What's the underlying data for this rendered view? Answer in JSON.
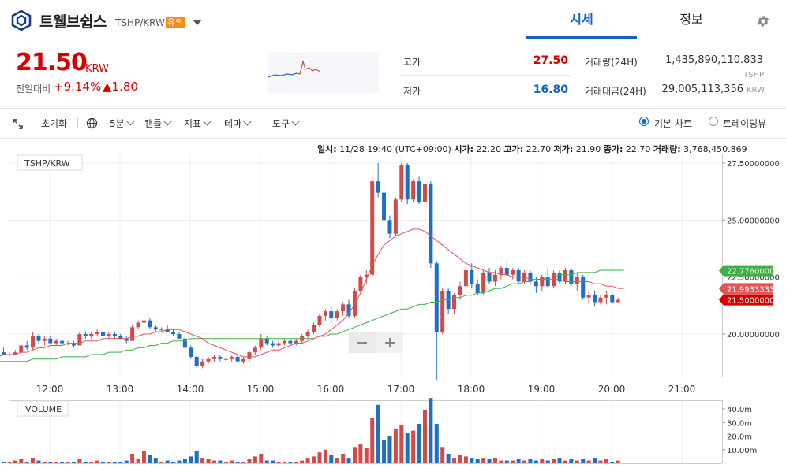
{
  "header": {
    "coin_name": "트웰브쉽스",
    "pair": "TSHP/KRW",
    "caution_badge": "유의",
    "tabs": [
      "시세",
      "정보"
    ]
  },
  "price": {
    "current": "21.50",
    "unit": "KRW",
    "change_label": "전일대비",
    "change_rate": "+9.14%",
    "change_price": "▲1.80"
  },
  "stats": {
    "high_label": "고가",
    "high": "27.50",
    "low_label": "저가",
    "low": "16.80",
    "volume_label": "거래량(24H)",
    "volume": "1,435,890,110.833",
    "volume_unit": "TSHP",
    "amount_label": "거래대금(24H)",
    "amount": "29,005,113,356",
    "amount_unit": "KRW"
  },
  "toolbar": {
    "reset": "초기화",
    "interval": "5분",
    "candle": "캔들",
    "indicator": "지표",
    "theme": "테마",
    "tools": "도구",
    "basic_chart": "기본 차트",
    "tradingview": "트레이딩뷰"
  },
  "info_line": {
    "time_label": "일시:",
    "time": "11/28 19:40 (UTC+09:00)",
    "open_label": "시가:",
    "open": "22.20",
    "high_label": "고가:",
    "high": "22.70",
    "low_label": "저가:",
    "low": "21.90",
    "close_label": "종가:",
    "close": "22.70",
    "volume_label": "거래량:",
    "volume": "3,768,450.869"
  },
  "chart_data": {
    "type": "candlestick",
    "symbol_label": "TSHP/KRW",
    "volume_label": "VOLUME",
    "x_ticks": [
      "12:00",
      "13:00",
      "14:00",
      "15:00",
      "16:00",
      "17:00",
      "18:00",
      "19:00",
      "20:00",
      "21:00"
    ],
    "y_ticks": [
      "27.50000000",
      "25.00000000",
      "22.50000000",
      "20.00000000"
    ],
    "y_range": [
      17.8,
      27.8
    ],
    "volume_ticks": [
      "40.0m",
      "30.0m",
      "20.0m",
      "10.00m"
    ],
    "volume_range": [
      0,
      50
    ],
    "price_labels": [
      {
        "value": "22.77600000",
        "color": "#3cb043"
      },
      {
        "value": "21.99333333",
        "color": "#e05555"
      },
      {
        "value": "21.50000000",
        "color": "#d60000"
      }
    ],
    "candle_interval_minutes": 5,
    "first_candle_time": "11:30",
    "candles": [
      [
        19.1,
        19.2,
        18.9,
        18.9
      ],
      [
        18.9,
        19.1,
        18.8,
        19.0
      ],
      [
        19.0,
        19.3,
        18.9,
        19.2
      ],
      [
        19.2,
        19.4,
        19.1,
        19.1
      ],
      [
        19.1,
        19.2,
        19.0,
        19.1
      ],
      [
        19.1,
        19.3,
        19.1,
        19.2
      ],
      [
        19.2,
        19.6,
        19.1,
        19.5
      ],
      [
        19.5,
        19.7,
        19.3,
        19.4
      ],
      [
        19.4,
        20.1,
        19.3,
        19.9
      ],
      [
        19.9,
        20.0,
        19.6,
        19.7
      ],
      [
        19.7,
        19.9,
        19.5,
        19.8
      ],
      [
        19.8,
        19.9,
        19.6,
        19.6
      ],
      [
        19.6,
        19.8,
        19.5,
        19.7
      ],
      [
        19.7,
        19.8,
        19.5,
        19.6
      ],
      [
        19.6,
        19.7,
        19.5,
        19.6
      ],
      [
        19.6,
        19.7,
        19.4,
        19.5
      ],
      [
        19.5,
        20.1,
        19.5,
        20.0
      ],
      [
        20.0,
        20.1,
        19.8,
        19.9
      ],
      [
        19.9,
        20.1,
        19.8,
        20.0
      ],
      [
        20.0,
        20.2,
        19.9,
        20.1
      ],
      [
        20.1,
        20.2,
        19.9,
        19.9
      ],
      [
        19.9,
        20.1,
        19.8,
        20.0
      ],
      [
        20.0,
        20.1,
        19.8,
        19.9
      ],
      [
        19.9,
        20.0,
        19.8,
        19.8
      ],
      [
        19.8,
        19.9,
        19.6,
        19.7
      ],
      [
        19.7,
        20.4,
        19.7,
        20.3
      ],
      [
        20.3,
        20.6,
        20.2,
        20.5
      ],
      [
        20.5,
        20.8,
        20.3,
        20.6
      ],
      [
        20.6,
        20.7,
        20.2,
        20.3
      ],
      [
        20.3,
        20.4,
        20.1,
        20.2
      ],
      [
        20.2,
        20.3,
        20.1,
        20.2
      ],
      [
        20.2,
        20.4,
        20.1,
        20.1
      ],
      [
        20.1,
        20.2,
        19.9,
        20.0
      ],
      [
        20.0,
        20.1,
        19.8,
        19.8
      ],
      [
        19.8,
        19.9,
        19.3,
        19.4
      ],
      [
        19.4,
        19.5,
        18.9,
        19.0
      ],
      [
        19.0,
        19.1,
        18.5,
        18.6
      ],
      [
        18.6,
        18.9,
        18.5,
        18.8
      ],
      [
        18.8,
        19.0,
        18.7,
        18.9
      ],
      [
        18.9,
        19.1,
        18.8,
        19.0
      ],
      [
        19.0,
        19.1,
        18.8,
        18.9
      ],
      [
        18.9,
        19.0,
        18.8,
        18.9
      ],
      [
        18.9,
        19.1,
        18.8,
        19.0
      ],
      [
        19.0,
        19.1,
        18.8,
        18.8
      ],
      [
        18.8,
        19.0,
        18.7,
        18.9
      ],
      [
        18.9,
        19.3,
        18.8,
        19.2
      ],
      [
        19.2,
        19.5,
        19.1,
        19.4
      ],
      [
        19.4,
        20.0,
        19.3,
        19.8
      ],
      [
        19.8,
        19.9,
        19.5,
        19.6
      ],
      [
        19.6,
        19.7,
        19.4,
        19.5
      ],
      [
        19.5,
        19.7,
        19.4,
        19.6
      ],
      [
        19.6,
        19.8,
        19.5,
        19.7
      ],
      [
        19.7,
        19.8,
        19.5,
        19.6
      ],
      [
        19.6,
        19.8,
        19.5,
        19.7
      ],
      [
        19.7,
        20.0,
        19.6,
        19.9
      ],
      [
        19.9,
        20.2,
        19.8,
        20.1
      ],
      [
        20.1,
        20.5,
        20.0,
        20.4
      ],
      [
        20.4,
        20.9,
        20.3,
        20.8
      ],
      [
        20.8,
        21.1,
        20.6,
        21.0
      ],
      [
        21.0,
        21.2,
        20.5,
        20.7
      ],
      [
        20.7,
        21.1,
        20.6,
        21.0
      ],
      [
        21.0,
        21.4,
        20.8,
        21.3
      ],
      [
        21.3,
        21.5,
        20.7,
        20.8
      ],
      [
        20.8,
        22.0,
        20.7,
        21.9
      ],
      [
        21.9,
        22.6,
        21.8,
        22.5
      ],
      [
        22.5,
        22.8,
        22.2,
        22.6
      ],
      [
        22.6,
        26.9,
        22.5,
        26.7
      ],
      [
        26.7,
        27.5,
        26.0,
        26.2
      ],
      [
        26.2,
        26.6,
        24.9,
        25.0
      ],
      [
        25.0,
        25.2,
        24.2,
        24.4
      ],
      [
        24.4,
        26.0,
        24.3,
        25.9
      ],
      [
        25.9,
        27.5,
        25.8,
        27.4
      ],
      [
        27.4,
        27.5,
        25.7,
        25.9
      ],
      [
        25.9,
        26.8,
        25.8,
        26.7
      ],
      [
        26.7,
        26.9,
        25.7,
        25.8
      ],
      [
        25.8,
        26.7,
        24.6,
        26.6
      ],
      [
        26.6,
        26.7,
        22.9,
        23.1
      ],
      [
        23.1,
        23.2,
        18.0,
        20.1
      ],
      [
        20.1,
        22.0,
        20.0,
        21.9
      ],
      [
        21.9,
        22.0,
        20.9,
        21.1
      ],
      [
        21.1,
        21.8,
        20.9,
        21.7
      ],
      [
        21.7,
        22.3,
        21.5,
        22.1
      ],
      [
        22.1,
        22.9,
        21.9,
        22.8
      ],
      [
        22.8,
        23.1,
        22.0,
        22.2
      ],
      [
        22.2,
        22.4,
        21.7,
        21.8
      ],
      [
        21.8,
        22.8,
        21.7,
        22.7
      ],
      [
        22.7,
        22.9,
        22.2,
        22.3
      ],
      [
        22.3,
        22.8,
        22.1,
        22.6
      ],
      [
        22.6,
        23.0,
        22.4,
        22.9
      ],
      [
        22.9,
        23.2,
        22.5,
        22.6
      ],
      [
        22.6,
        22.9,
        22.4,
        22.8
      ],
      [
        22.8,
        22.9,
        22.2,
        22.3
      ],
      [
        22.3,
        22.8,
        22.2,
        22.7
      ],
      [
        22.7,
        22.8,
        22.2,
        22.3
      ],
      [
        22.3,
        22.5,
        21.8,
        22.1
      ],
      [
        22.1,
        22.6,
        21.9,
        22.5
      ],
      [
        22.5,
        22.9,
        22.0,
        22.1
      ],
      [
        22.1,
        22.8,
        22.0,
        22.7
      ],
      [
        22.7,
        22.8,
        22.2,
        22.3
      ],
      [
        22.3,
        22.9,
        22.2,
        22.8
      ],
      [
        22.8,
        22.9,
        22.1,
        22.2
      ],
      [
        22.2,
        22.7,
        21.9,
        22.5
      ],
      [
        22.5,
        22.6,
        21.5,
        21.6
      ],
      [
        21.6,
        21.9,
        21.3,
        21.7
      ],
      [
        21.7,
        21.9,
        21.2,
        21.4
      ],
      [
        21.4,
        21.7,
        21.3,
        21.6
      ],
      [
        21.6,
        21.9,
        21.3,
        21.7
      ],
      [
        21.7,
        21.8,
        21.3,
        21.4
      ],
      [
        21.4,
        21.6,
        21.4,
        21.5
      ]
    ],
    "volumes": [
      1,
      3,
      2,
      1,
      1,
      2,
      3,
      1,
      4,
      2,
      1,
      1,
      1,
      1,
      1,
      1,
      3,
      1,
      1,
      2,
      1,
      1,
      1,
      1,
      2,
      7,
      3,
      9,
      6,
      4,
      1,
      2,
      1,
      2,
      3,
      5,
      9,
      4,
      3,
      2,
      2,
      1,
      2,
      1,
      1,
      3,
      5,
      7,
      2,
      2,
      1,
      1,
      1,
      1,
      2,
      4,
      5,
      8,
      10,
      6,
      4,
      7,
      4,
      12,
      14,
      11,
      33,
      43,
      17,
      20,
      25,
      28,
      22,
      24,
      29,
      39,
      48,
      29,
      12,
      7,
      4,
      6,
      5,
      4,
      3,
      4,
      3,
      4,
      2,
      2,
      2,
      3,
      2,
      3,
      2,
      3,
      2,
      3,
      4,
      2,
      3,
      2,
      3,
      2,
      4,
      2,
      3,
      1,
      2,
      2
    ],
    "ma_red": [
      19.0,
      19.0,
      19.0,
      19.1,
      19.1,
      19.1,
      19.2,
      19.2,
      19.3,
      19.4,
      19.4,
      19.5,
      19.5,
      19.5,
      19.6,
      19.6,
      19.6,
      19.7,
      19.7,
      19.7,
      19.8,
      19.8,
      19.8,
      19.8,
      19.8,
      19.9,
      19.9,
      20.0,
      20.0,
      20.1,
      20.1,
      20.2,
      20.2,
      20.2,
      20.1,
      20.0,
      19.9,
      19.8,
      19.6,
      19.5,
      19.4,
      19.3,
      19.2,
      19.1,
      19.0,
      19.0,
      19.0,
      19.1,
      19.2,
      19.3,
      19.3,
      19.4,
      19.5,
      19.6,
      19.6,
      19.7,
      19.8,
      19.9,
      20.0,
      20.2,
      20.4,
      20.6,
      20.9,
      21.3,
      21.8,
      22.4,
      23.0,
      23.5,
      23.9,
      24.1,
      24.3,
      24.4,
      24.5,
      24.6,
      24.6,
      24.5,
      24.3,
      24.1,
      23.9,
      23.7,
      23.5,
      23.3,
      23.1,
      23.0,
      22.9,
      22.8,
      22.7,
      22.7,
      22.6,
      22.6,
      22.5,
      22.5,
      22.5,
      22.4,
      22.4,
      22.4,
      22.4,
      22.4,
      22.4,
      22.3,
      22.3,
      22.3,
      22.3,
      22.3,
      22.2,
      22.2,
      22.1,
      22.1,
      22.0,
      22.0
    ],
    "ma_green": [
      18.8,
      18.8,
      18.8,
      18.8,
      18.8,
      18.8,
      18.8,
      18.8,
      18.9,
      18.9,
      18.9,
      18.9,
      18.9,
      19.0,
      19.0,
      19.0,
      19.0,
      19.0,
      19.1,
      19.1,
      19.1,
      19.2,
      19.2,
      19.2,
      19.3,
      19.3,
      19.4,
      19.4,
      19.5,
      19.5,
      19.6,
      19.6,
      19.7,
      19.7,
      19.7,
      19.8,
      19.8,
      19.8,
      19.8,
      19.8,
      19.8,
      19.8,
      19.8,
      19.8,
      19.8,
      19.8,
      19.8,
      19.8,
      19.8,
      19.8,
      19.8,
      19.8,
      19.8,
      19.8,
      19.8,
      19.8,
      19.8,
      19.9,
      19.9,
      20.0,
      20.0,
      20.1,
      20.2,
      20.3,
      20.4,
      20.5,
      20.6,
      20.7,
      20.8,
      20.9,
      21.0,
      21.1,
      21.1,
      21.2,
      21.3,
      21.3,
      21.4,
      21.4,
      21.5,
      21.5,
      21.6,
      21.6,
      21.7,
      21.7,
      21.8,
      21.8,
      21.9,
      22.0,
      22.0,
      22.1,
      22.2,
      22.2,
      22.3,
      22.3,
      22.4,
      22.4,
      22.5,
      22.5,
      22.6,
      22.6,
      22.6,
      22.7,
      22.7,
      22.7,
      22.7,
      22.8,
      22.8,
      22.8,
      22.8,
      22.8
    ]
  },
  "colors": {
    "up": "#d14b4b",
    "down": "#1f6fc5",
    "accent": "#1261c4",
    "badge": "#f28b1b"
  }
}
